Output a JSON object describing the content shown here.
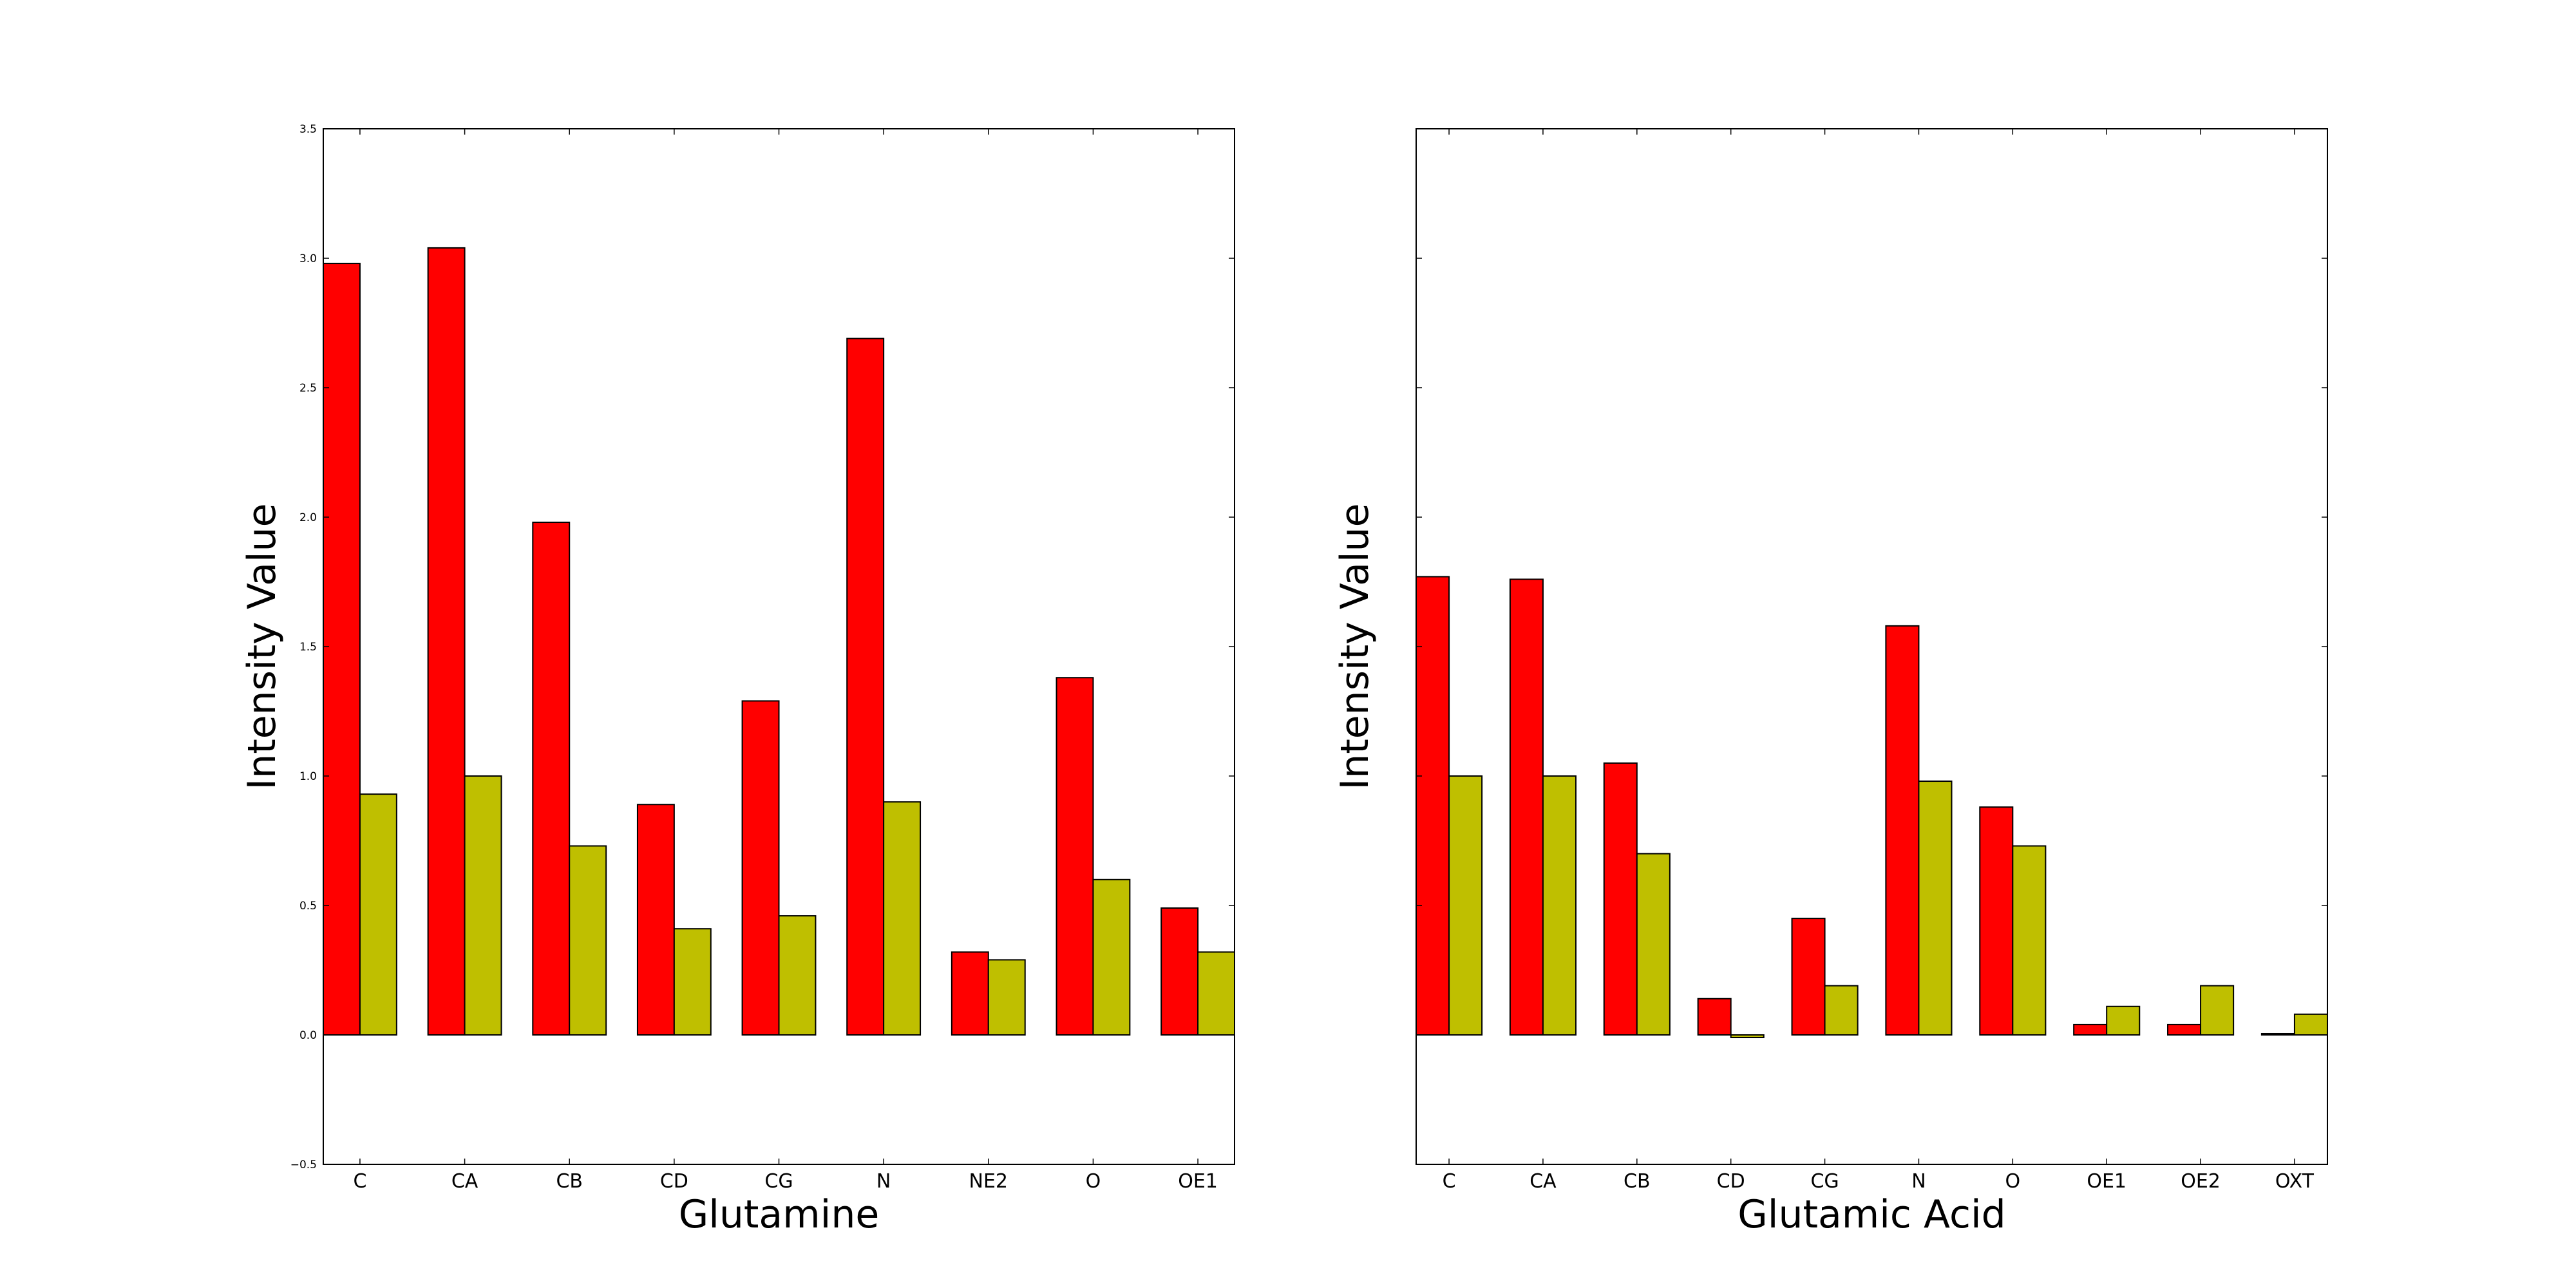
{
  "colors": {
    "series_1": "#ff0000",
    "series_2": "#bfbf00",
    "bar_edge": "#000000",
    "frame": "#000000"
  },
  "chart_data": [
    {
      "type": "bar",
      "xlabel": "Glutamine",
      "ylabel": "Intensity Value",
      "ylim": [
        -0.5,
        3.5
      ],
      "yticks": [
        -0.5,
        0.0,
        0.5,
        1.0,
        1.5,
        2.0,
        2.5,
        3.0,
        3.5
      ],
      "ytick_labels": [
        "−0.5",
        "0.0",
        "0.5",
        "1.0",
        "1.5",
        "2.0",
        "2.5",
        "3.0",
        "3.5"
      ],
      "show_ytick_labels": true,
      "grid": false,
      "categories": [
        "C",
        "CA",
        "CB",
        "CD",
        "CG",
        "N",
        "NE2",
        "O",
        "OE1"
      ],
      "series": [
        {
          "values": [
            2.98,
            3.04,
            1.98,
            0.89,
            1.29,
            2.69,
            0.32,
            1.38,
            0.49
          ]
        },
        {
          "values": [
            0.93,
            1.0,
            0.73,
            0.41,
            0.46,
            0.9,
            0.29,
            0.6,
            0.32
          ]
        }
      ]
    },
    {
      "type": "bar",
      "xlabel": "Glutamic Acid",
      "ylabel": "Intensity Value",
      "ylim": [
        -0.5,
        3.5
      ],
      "yticks": [
        -0.5,
        0.0,
        0.5,
        1.0,
        1.5,
        2.0,
        2.5,
        3.0,
        3.5
      ],
      "ytick_labels": [],
      "show_ytick_labels": false,
      "grid": false,
      "categories": [
        "C",
        "CA",
        "CB",
        "CD",
        "CG",
        "N",
        "O",
        "OE1",
        "OE2",
        "OXT"
      ],
      "series": [
        {
          "values": [
            1.77,
            1.76,
            1.05,
            0.14,
            0.45,
            1.58,
            0.88,
            0.04,
            0.04,
            0.005
          ]
        },
        {
          "values": [
            1.0,
            1.0,
            0.7,
            -0.01,
            0.19,
            0.98,
            0.73,
            0.11,
            0.19,
            0.08
          ]
        }
      ]
    }
  ]
}
